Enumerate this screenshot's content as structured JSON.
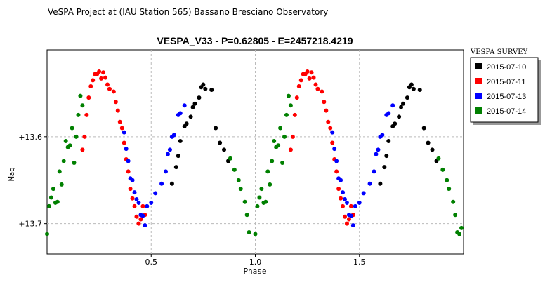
{
  "header": {
    "text": "VeSPA Project at (IAU Station 565) Bassano Bresciano Observatory"
  },
  "chart_data": {
    "type": "scatter",
    "title": "VESPA_V33  -  P=0.62805  -  E=2457218.4219",
    "xlabel": "Phase",
    "ylabel": "Mag",
    "xlim": [
      0.0,
      2.0
    ],
    "ylim": [
      13.735,
      13.5
    ],
    "y_inverted": true,
    "grid": true,
    "legend_placement": "right",
    "legend_title": "VESPA SURVEY",
    "x_ticks": [
      {
        "value": 0.5,
        "label": "0.5"
      },
      {
        "value": 1.0,
        "label": "1.0"
      },
      {
        "value": 1.5,
        "label": "1.5"
      }
    ],
    "y_ticks": [
      {
        "value": 13.6,
        "label": "+13.6"
      },
      {
        "value": 13.7,
        "label": "+13.7"
      }
    ],
    "series": [
      {
        "name": "2015-07-10",
        "color": "#000000",
        "points": [
          [
            0.6,
            13.654
          ],
          [
            0.62,
            13.635
          ],
          [
            0.63,
            13.622
          ],
          [
            0.64,
            13.605
          ],
          [
            0.66,
            13.588
          ],
          [
            0.67,
            13.585
          ],
          [
            0.69,
            13.577
          ],
          [
            0.7,
            13.566
          ],
          [
            0.71,
            13.562
          ],
          [
            0.73,
            13.555
          ],
          [
            0.74,
            13.543
          ],
          [
            0.75,
            13.54
          ],
          [
            0.76,
            13.545
          ],
          [
            0.79,
            13.546
          ],
          [
            0.81,
            13.59
          ],
          [
            0.83,
            13.607
          ],
          [
            0.85,
            13.615
          ],
          [
            0.87,
            13.628
          ],
          [
            1.6,
            13.654
          ],
          [
            1.62,
            13.635
          ],
          [
            1.63,
            13.622
          ],
          [
            1.64,
            13.605
          ],
          [
            1.66,
            13.588
          ],
          [
            1.67,
            13.585
          ],
          [
            1.69,
            13.577
          ],
          [
            1.7,
            13.566
          ],
          [
            1.71,
            13.562
          ],
          [
            1.73,
            13.555
          ],
          [
            1.74,
            13.543
          ],
          [
            1.75,
            13.54
          ],
          [
            1.76,
            13.545
          ],
          [
            1.79,
            13.546
          ],
          [
            1.81,
            13.59
          ],
          [
            1.83,
            13.607
          ],
          [
            1.85,
            13.615
          ],
          [
            1.87,
            13.628
          ]
        ]
      },
      {
        "name": "2015-07-11",
        "color": "#ff0000",
        "points": [
          [
            0.17,
            13.615
          ],
          [
            0.18,
            13.6
          ],
          [
            0.19,
            13.575
          ],
          [
            0.2,
            13.555
          ],
          [
            0.21,
            13.542
          ],
          [
            0.22,
            13.535
          ],
          [
            0.23,
            13.528
          ],
          [
            0.24,
            13.528
          ],
          [
            0.25,
            13.525
          ],
          [
            0.26,
            13.533
          ],
          [
            0.27,
            13.526
          ],
          [
            0.28,
            13.532
          ],
          [
            0.29,
            13.54
          ],
          [
            0.3,
            13.545
          ],
          [
            0.32,
            13.548
          ],
          [
            0.33,
            13.56
          ],
          [
            0.34,
            13.57
          ],
          [
            0.35,
            13.583
          ],
          [
            0.36,
            13.59
          ],
          [
            0.37,
            13.607
          ],
          [
            0.38,
            13.626
          ],
          [
            0.39,
            13.64
          ],
          [
            0.4,
            13.66
          ],
          [
            0.41,
            13.671
          ],
          [
            0.42,
            13.68
          ],
          [
            0.43,
            13.692
          ],
          [
            0.44,
            13.7
          ],
          [
            0.45,
            13.695
          ],
          [
            0.46,
            13.68
          ],
          [
            0.47,
            13.69
          ],
          [
            1.17,
            13.615
          ],
          [
            1.18,
            13.6
          ],
          [
            1.19,
            13.575
          ],
          [
            1.2,
            13.555
          ],
          [
            1.21,
            13.542
          ],
          [
            1.22,
            13.535
          ],
          [
            1.23,
            13.528
          ],
          [
            1.24,
            13.528
          ],
          [
            1.25,
            13.525
          ],
          [
            1.26,
            13.533
          ],
          [
            1.27,
            13.526
          ],
          [
            1.28,
            13.532
          ],
          [
            1.29,
            13.54
          ],
          [
            1.3,
            13.545
          ],
          [
            1.32,
            13.548
          ],
          [
            1.33,
            13.56
          ],
          [
            1.34,
            13.57
          ],
          [
            1.35,
            13.583
          ],
          [
            1.36,
            13.59
          ],
          [
            1.37,
            13.607
          ],
          [
            1.38,
            13.626
          ],
          [
            1.39,
            13.64
          ],
          [
            1.4,
            13.66
          ],
          [
            1.41,
            13.671
          ],
          [
            1.42,
            13.68
          ],
          [
            1.43,
            13.692
          ],
          [
            1.44,
            13.7
          ],
          [
            1.45,
            13.695
          ],
          [
            1.46,
            13.68
          ],
          [
            1.47,
            13.69
          ]
        ]
      },
      {
        "name": "2015-07-13",
        "color": "#0000ff",
        "points": [
          [
            0.37,
            13.595
          ],
          [
            0.38,
            13.614
          ],
          [
            0.39,
            13.628
          ],
          [
            0.4,
            13.648
          ],
          [
            0.41,
            13.65
          ],
          [
            0.42,
            13.664
          ],
          [
            0.43,
            13.672
          ],
          [
            0.44,
            13.676
          ],
          [
            0.45,
            13.69
          ],
          [
            0.46,
            13.691
          ],
          [
            0.47,
            13.702
          ],
          [
            0.48,
            13.68
          ],
          [
            0.5,
            13.676
          ],
          [
            0.52,
            13.665
          ],
          [
            0.55,
            13.654
          ],
          [
            0.57,
            13.64
          ],
          [
            0.58,
            13.62
          ],
          [
            0.59,
            13.615
          ],
          [
            0.6,
            13.6
          ],
          [
            0.61,
            13.598
          ],
          [
            0.63,
            13.575
          ],
          [
            0.64,
            13.573
          ],
          [
            0.66,
            13.564
          ],
          [
            1.37,
            13.595
          ],
          [
            1.38,
            13.614
          ],
          [
            1.39,
            13.628
          ],
          [
            1.4,
            13.648
          ],
          [
            1.41,
            13.65
          ],
          [
            1.42,
            13.664
          ],
          [
            1.43,
            13.672
          ],
          [
            1.44,
            13.676
          ],
          [
            1.45,
            13.69
          ],
          [
            1.46,
            13.691
          ],
          [
            1.47,
            13.702
          ],
          [
            1.48,
            13.68
          ],
          [
            1.5,
            13.676
          ],
          [
            1.52,
            13.665
          ],
          [
            1.55,
            13.654
          ],
          [
            1.57,
            13.64
          ],
          [
            1.58,
            13.62
          ],
          [
            1.59,
            13.615
          ],
          [
            1.6,
            13.6
          ],
          [
            1.61,
            13.598
          ],
          [
            1.63,
            13.575
          ],
          [
            1.64,
            13.573
          ],
          [
            1.66,
            13.564
          ]
        ]
      },
      {
        "name": "2015-07-14",
        "color": "#008000",
        "points": [
          [
            0.0,
            13.712
          ],
          [
            0.01,
            13.68
          ],
          [
            0.02,
            13.67
          ],
          [
            0.03,
            13.66
          ],
          [
            0.04,
            13.676
          ],
          [
            0.05,
            13.675
          ],
          [
            0.06,
            13.64
          ],
          [
            0.07,
            13.655
          ],
          [
            0.08,
            13.628
          ],
          [
            0.09,
            13.605
          ],
          [
            0.1,
            13.612
          ],
          [
            0.11,
            13.61
          ],
          [
            0.12,
            13.59
          ],
          [
            0.13,
            13.63
          ],
          [
            0.14,
            13.6
          ],
          [
            0.15,
            13.575
          ],
          [
            0.16,
            13.553
          ],
          [
            0.17,
            13.564
          ],
          [
            0.88,
            13.625
          ],
          [
            0.9,
            13.638
          ],
          [
            0.92,
            13.65
          ],
          [
            0.93,
            13.66
          ],
          [
            0.95,
            13.675
          ],
          [
            0.96,
            13.69
          ],
          [
            0.97,
            13.71
          ],
          [
            1.0,
            13.712
          ],
          [
            1.01,
            13.68
          ],
          [
            1.02,
            13.67
          ],
          [
            1.03,
            13.66
          ],
          [
            1.04,
            13.676
          ],
          [
            1.05,
            13.675
          ],
          [
            1.06,
            13.64
          ],
          [
            1.07,
            13.655
          ],
          [
            1.08,
            13.628
          ],
          [
            1.09,
            13.605
          ],
          [
            1.1,
            13.612
          ],
          [
            1.11,
            13.61
          ],
          [
            1.12,
            13.59
          ],
          [
            1.13,
            13.63
          ],
          [
            1.14,
            13.6
          ],
          [
            1.15,
            13.575
          ],
          [
            1.16,
            13.553
          ],
          [
            1.17,
            13.564
          ],
          [
            1.88,
            13.625
          ],
          [
            1.9,
            13.638
          ],
          [
            1.92,
            13.65
          ],
          [
            1.93,
            13.66
          ],
          [
            1.95,
            13.675
          ],
          [
            1.96,
            13.69
          ],
          [
            1.97,
            13.71
          ],
          [
            1.98,
            13.712
          ],
          [
            1.99,
            13.705
          ]
        ]
      }
    ]
  }
}
